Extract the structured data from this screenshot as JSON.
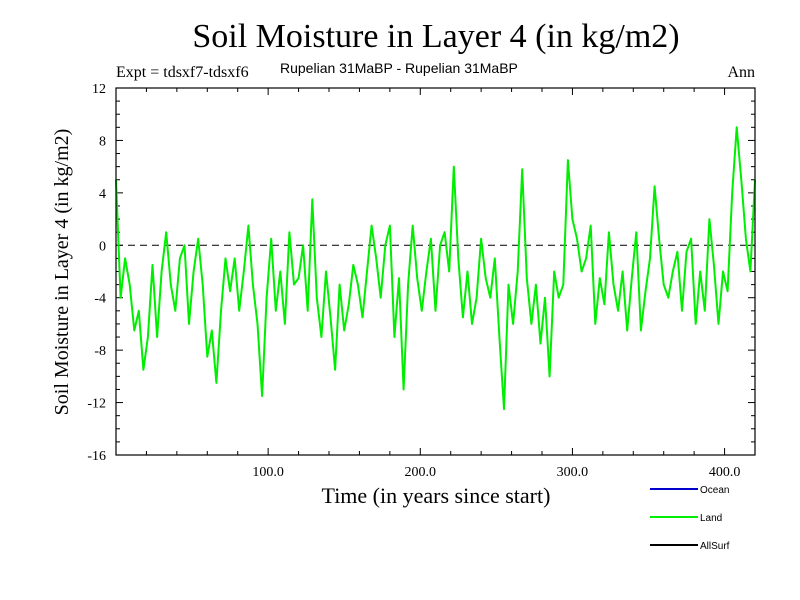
{
  "chart_data": {
    "type": "line",
    "title": "Soil Moisture in Layer 4 (in kg/m2)",
    "subtitle_left": "Expt = tdsxf7-tdsxf6",
    "subtitle_center": "Rupelian  31MaBP - Rupelian  31MaBP",
    "subtitle_right": "Ann",
    "xlabel": "Time (in years since start)",
    "ylabel": "Soil Moisture in Layer 4 (in kg/m2)",
    "xlim": [
      0,
      420
    ],
    "ylim": [
      -16,
      12
    ],
    "xticks": [
      100,
      200,
      300,
      400
    ],
    "xtick_labels": [
      "100.0",
      "200.0",
      "300.0",
      "400.0"
    ],
    "yticks": [
      -16,
      -12,
      -8,
      -4,
      0,
      4,
      8,
      12
    ],
    "ytick_labels": [
      "-16",
      "-12",
      "-8",
      "-4",
      "0",
      "4",
      "8",
      "12"
    ],
    "zero_line": true,
    "legend": [
      {
        "name": "Ocean",
        "color": "#0000cc"
      },
      {
        "name": "Land",
        "color": "#00ee00"
      },
      {
        "name": "AllSurf",
        "color": "#000000"
      }
    ],
    "series": [
      {
        "name": "Land",
        "color": "#00ee00",
        "x": [
          0,
          3,
          6,
          9,
          12,
          15,
          18,
          21,
          24,
          27,
          30,
          33,
          36,
          39,
          42,
          45,
          48,
          51,
          54,
          57,
          60,
          63,
          66,
          69,
          72,
          75,
          78,
          81,
          84,
          87,
          90,
          93,
          96,
          99,
          102,
          105,
          108,
          111,
          114,
          117,
          120,
          123,
          126,
          129,
          132,
          135,
          138,
          141,
          144,
          147,
          150,
          153,
          156,
          159,
          162,
          165,
          168,
          171,
          174,
          177,
          180,
          183,
          186,
          189,
          192,
          195,
          198,
          201,
          204,
          207,
          210,
          213,
          216,
          219,
          222,
          225,
          228,
          231,
          234,
          237,
          240,
          243,
          246,
          249,
          252,
          255,
          258,
          261,
          264,
          267,
          270,
          273,
          276,
          279,
          282,
          285,
          288,
          291,
          294,
          297,
          300,
          303,
          306,
          309,
          312,
          315,
          318,
          321,
          324,
          327,
          330,
          333,
          336,
          339,
          342,
          345,
          348,
          351,
          354,
          357,
          360,
          363,
          366,
          369,
          372,
          375,
          378,
          381,
          384,
          387,
          390,
          393,
          396,
          399,
          402,
          405,
          408,
          411,
          414,
          417,
          420
        ],
        "values": [
          5.0,
          -4.0,
          -1.0,
          -3.0,
          -6.5,
          -5.0,
          -9.5,
          -7.0,
          -1.5,
          -7.0,
          -2.0,
          1.0,
          -3.0,
          -5.0,
          -1.0,
          0.0,
          -6.0,
          -2.0,
          0.5,
          -3.0,
          -8.5,
          -6.5,
          -10.5,
          -5.0,
          -1.0,
          -3.5,
          -1.0,
          -5.0,
          -2.0,
          1.5,
          -3.0,
          -6.0,
          -11.5,
          -4.0,
          0.5,
          -5.0,
          -2.0,
          -6.0,
          1.0,
          -3.0,
          -2.5,
          0.0,
          -5.0,
          3.5,
          -4.0,
          -7.0,
          -2.0,
          -5.5,
          -9.5,
          -3.0,
          -6.5,
          -4.5,
          -1.5,
          -3.0,
          -5.5,
          -2.0,
          1.5,
          -1.0,
          -4.0,
          0.0,
          1.5,
          -7.0,
          -2.5,
          -11.0,
          -3.0,
          1.5,
          -2.5,
          -5.0,
          -2.0,
          0.5,
          -5.0,
          0.0,
          1.0,
          -2.0,
          6.0,
          -1.0,
          -5.5,
          -2.0,
          -6.0,
          -4.0,
          0.5,
          -2.5,
          -4.0,
          -1.0,
          -7.0,
          -12.5,
          -3.0,
          -6.0,
          -2.0,
          5.8,
          -2.5,
          -6.0,
          -3.0,
          -7.5,
          -4.0,
          -10.0,
          -2.0,
          -4.0,
          -3.0,
          6.5,
          2.0,
          0.5,
          -2.0,
          -1.0,
          1.5,
          -6.0,
          -2.5,
          -4.5,
          1.0,
          -3.0,
          -5.0,
          -2.0,
          -6.5,
          -2.5,
          1.0,
          -6.5,
          -3.5,
          -1.0,
          4.5,
          0.5,
          -3.0,
          -4.0,
          -2.0,
          -0.5,
          -5.0,
          -0.5,
          0.5,
          -6.0,
          -2.0,
          -5.0,
          2.0,
          -1.5,
          -6.0,
          -2.0,
          -3.5,
          4.0,
          9.0,
          5.0,
          0.5,
          -2.0,
          5.0
        ]
      }
    ]
  }
}
